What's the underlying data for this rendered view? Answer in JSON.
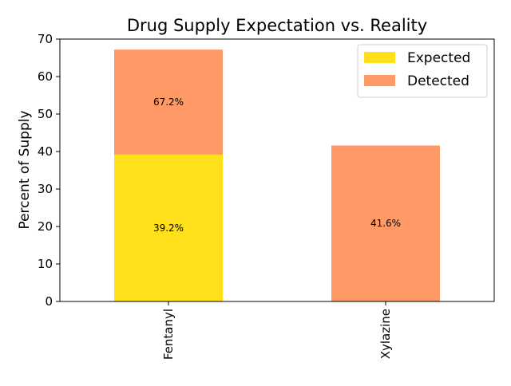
{
  "chart_data": {
    "type": "bar",
    "stacked": false,
    "overlapping": true,
    "title": "Drug Supply Expectation vs. Reality",
    "xlabel": "",
    "ylabel": "Percent of Supply",
    "categories": [
      "Fentanyl",
      "Xylazine"
    ],
    "series": [
      {
        "name": "Detected",
        "values": [
          67.2,
          41.6
        ],
        "labels": [
          "67.2%",
          "41.6%"
        ],
        "color": "#ff9966"
      },
      {
        "name": "Expected",
        "values": [
          39.2,
          0
        ],
        "labels": [
          "39.2%",
          ""
        ],
        "color": "#ffe01a"
      }
    ],
    "legend": {
      "position": "top-right",
      "entries": [
        {
          "name": "Expected",
          "color": "#ffe01a"
        },
        {
          "name": "Detected",
          "color": "#ff9966"
        }
      ]
    },
    "ylim": [
      0,
      70
    ],
    "yticks": [
      0,
      10,
      20,
      30,
      40,
      50,
      60,
      70
    ],
    "grid": false
  }
}
